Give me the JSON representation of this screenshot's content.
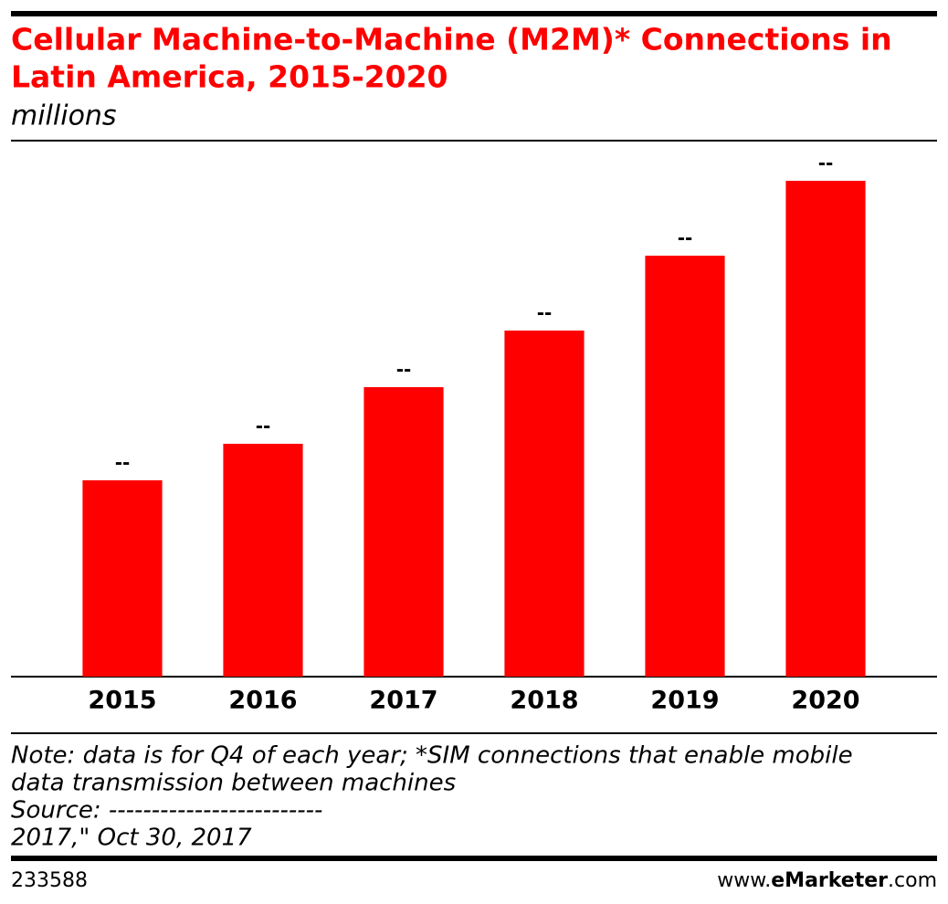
{
  "chart_data": {
    "type": "bar",
    "title": [
      "Cellular Machine-to-Machine (M2M)* Connections in",
      "Latin America, 2015-2020"
    ],
    "subtitle": "millions",
    "categories": [
      "2015",
      "2016",
      "2017",
      "2018",
      "2019",
      "2020"
    ],
    "values": [
      21.5,
      25.5,
      31.7,
      37.9,
      46.1,
      54.3
    ],
    "value_labels": [
      "--",
      "--",
      "--",
      "--",
      "--",
      "--"
    ],
    "color": "#ff0000",
    "ylim": [
      0,
      58.6
    ],
    "note": [
      "Note: data is for Q4 of each year; *SIM connections that enable mobile",
      "data transmission between machines",
      "Source: -------------------------",
      "2017,\" Oct 30, 2017"
    ],
    "chart_id": "233588",
    "brand": {
      "prefix": "www.",
      "name": "eMarketer",
      "suffix": ".com"
    }
  }
}
